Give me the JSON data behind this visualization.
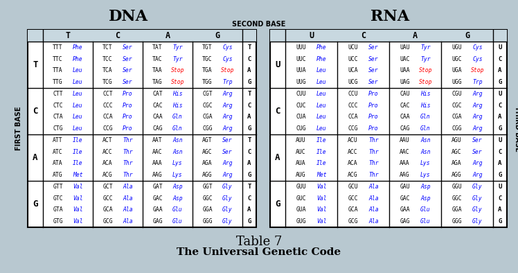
{
  "title1": "DNA",
  "title2": "RNA",
  "subtitle": "SECOND BASE",
  "footer1": "Table 7",
  "footer2": "The Universal Genetic Code",
  "bg_color": "#b8c8d0",
  "cell_bg": "#ffffff",
  "header_bg": "#c8d8e0",
  "border_color": "#000000",
  "dna_cols": [
    "T",
    "C",
    "A",
    "G"
  ],
  "rna_cols": [
    "U",
    "C",
    "A",
    "G"
  ],
  "row_labels_dna": [
    "T",
    "C",
    "A",
    "G"
  ],
  "row_labels_rna": [
    "U",
    "C",
    "A",
    "G"
  ],
  "third_base_dna": [
    "T",
    "C",
    "A",
    "G"
  ],
  "third_base_rna": [
    "U",
    "C",
    "A",
    "G"
  ],
  "dna_data": [
    [
      [
        [
          "TTT",
          "Phe",
          "blue"
        ],
        [
          "TTC",
          "Phe",
          "blue"
        ],
        [
          "TTA",
          "Leu",
          "blue"
        ],
        [
          "TTG",
          "Leu",
          "blue"
        ]
      ],
      [
        [
          "TCT",
          "Ser",
          "blue"
        ],
        [
          "TCC",
          "Ser",
          "blue"
        ],
        [
          "TCA",
          "Ser",
          "blue"
        ],
        [
          "TCG",
          "Ser",
          "blue"
        ]
      ],
      [
        [
          "TAT",
          "Tyr",
          "blue"
        ],
        [
          "TAC",
          "Tyr",
          "blue"
        ],
        [
          "TAA",
          "Stop",
          "red"
        ],
        [
          "TAG",
          "Stop",
          "red"
        ]
      ],
      [
        [
          "TGT",
          "Cys",
          "blue"
        ],
        [
          "TGC",
          "Cys",
          "blue"
        ],
        [
          "TGA",
          "Stop",
          "red"
        ],
        [
          "TGG",
          "Trp",
          "blue"
        ]
      ]
    ],
    [
      [
        [
          "CTT",
          "Leu",
          "blue"
        ],
        [
          "CTC",
          "Leu",
          "blue"
        ],
        [
          "CTA",
          "Leu",
          "blue"
        ],
        [
          "CTG",
          "Leu",
          "blue"
        ]
      ],
      [
        [
          "CCT",
          "Pro",
          "blue"
        ],
        [
          "CCC",
          "Pro",
          "blue"
        ],
        [
          "CCA",
          "Pro",
          "blue"
        ],
        [
          "CCG",
          "Pro",
          "blue"
        ]
      ],
      [
        [
          "CAT",
          "His",
          "blue"
        ],
        [
          "CAC",
          "His",
          "blue"
        ],
        [
          "CAA",
          "Gln",
          "blue"
        ],
        [
          "CAG",
          "Gln",
          "blue"
        ]
      ],
      [
        [
          "CGT",
          "Arg",
          "blue"
        ],
        [
          "CGC",
          "Arg",
          "blue"
        ],
        [
          "CGA",
          "Arg",
          "blue"
        ],
        [
          "CGG",
          "Arg",
          "blue"
        ]
      ]
    ],
    [
      [
        [
          "ATT",
          "Ile",
          "blue"
        ],
        [
          "ATC",
          "Ile",
          "blue"
        ],
        [
          "ATA",
          "Ile",
          "blue"
        ],
        [
          "ATG",
          "Met",
          "blue"
        ]
      ],
      [
        [
          "ACT",
          "Thr",
          "blue"
        ],
        [
          "ACC",
          "Thr",
          "blue"
        ],
        [
          "ACA",
          "Thr",
          "blue"
        ],
        [
          "ACG",
          "Thr",
          "blue"
        ]
      ],
      [
        [
          "AAT",
          "Asn",
          "blue"
        ],
        [
          "AAC",
          "Asn",
          "blue"
        ],
        [
          "AAA",
          "Lys",
          "blue"
        ],
        [
          "AAG",
          "Lys",
          "blue"
        ]
      ],
      [
        [
          "AGT",
          "Ser",
          "blue"
        ],
        [
          "AGC",
          "Ser",
          "blue"
        ],
        [
          "AGA",
          "Arg",
          "blue"
        ],
        [
          "AGG",
          "Arg",
          "blue"
        ]
      ]
    ],
    [
      [
        [
          "GTT",
          "Val",
          "blue"
        ],
        [
          "GTC",
          "Val",
          "blue"
        ],
        [
          "GTA",
          "Val",
          "blue"
        ],
        [
          "GTG",
          "Val",
          "blue"
        ]
      ],
      [
        [
          "GCT",
          "Ala",
          "blue"
        ],
        [
          "GCC",
          "Ala",
          "blue"
        ],
        [
          "GCA",
          "Ala",
          "blue"
        ],
        [
          "GCG",
          "Ala",
          "blue"
        ]
      ],
      [
        [
          "GAT",
          "Asp",
          "blue"
        ],
        [
          "GAC",
          "Asp",
          "blue"
        ],
        [
          "GAA",
          "Glu",
          "blue"
        ],
        [
          "GAG",
          "Glu",
          "blue"
        ]
      ],
      [
        [
          "GGT",
          "Gly",
          "blue"
        ],
        [
          "GGC",
          "Gly",
          "blue"
        ],
        [
          "GGA",
          "Gly",
          "blue"
        ],
        [
          "GGG",
          "Gly",
          "blue"
        ]
      ]
    ]
  ],
  "rna_data": [
    [
      [
        [
          "UUU",
          "Phe",
          "blue"
        ],
        [
          "UUC",
          "Phe",
          "blue"
        ],
        [
          "UUA",
          "Leu",
          "blue"
        ],
        [
          "UUG",
          "Leu",
          "blue"
        ]
      ],
      [
        [
          "UCU",
          "Ser",
          "blue"
        ],
        [
          "UCC",
          "Ser",
          "blue"
        ],
        [
          "UCA",
          "Ser",
          "blue"
        ],
        [
          "UCG",
          "Ser",
          "blue"
        ]
      ],
      [
        [
          "UAU",
          "Tyr",
          "blue"
        ],
        [
          "UAC",
          "Tyr",
          "blue"
        ],
        [
          "UAA",
          "Stop",
          "red"
        ],
        [
          "UAG",
          "Stop",
          "red"
        ]
      ],
      [
        [
          "UGU",
          "Cys",
          "blue"
        ],
        [
          "UGC",
          "Cys",
          "blue"
        ],
        [
          "UGA",
          "Stop",
          "red"
        ],
        [
          "UGG",
          "Trp",
          "blue"
        ]
      ]
    ],
    [
      [
        [
          "CUU",
          "Leu",
          "blue"
        ],
        [
          "CUC",
          "Leu",
          "blue"
        ],
        [
          "CUA",
          "Leu",
          "blue"
        ],
        [
          "CUG",
          "Leu",
          "blue"
        ]
      ],
      [
        [
          "CCU",
          "Pro",
          "blue"
        ],
        [
          "CCC",
          "Pro",
          "blue"
        ],
        [
          "CCA",
          "Pro",
          "blue"
        ],
        [
          "CCG",
          "Pro",
          "blue"
        ]
      ],
      [
        [
          "CAU",
          "His",
          "blue"
        ],
        [
          "CAC",
          "His",
          "blue"
        ],
        [
          "CAA",
          "Gln",
          "blue"
        ],
        [
          "CAG",
          "Gln",
          "blue"
        ]
      ],
      [
        [
          "CGU",
          "Arg",
          "blue"
        ],
        [
          "CGC",
          "Arg",
          "blue"
        ],
        [
          "CGA",
          "Arg",
          "blue"
        ],
        [
          "CGG",
          "Arg",
          "blue"
        ]
      ]
    ],
    [
      [
        [
          "AUU",
          "Ile",
          "blue"
        ],
        [
          "AUC",
          "Ile",
          "blue"
        ],
        [
          "AUA",
          "Ile",
          "blue"
        ],
        [
          "AUG",
          "Met",
          "blue"
        ]
      ],
      [
        [
          "ACU",
          "Thr",
          "blue"
        ],
        [
          "ACC",
          "Thr",
          "blue"
        ],
        [
          "ACA",
          "Thr",
          "blue"
        ],
        [
          "ACG",
          "Thr",
          "blue"
        ]
      ],
      [
        [
          "AAU",
          "Asn",
          "blue"
        ],
        [
          "AAC",
          "Asn",
          "blue"
        ],
        [
          "AAA",
          "Lys",
          "blue"
        ],
        [
          "AAG",
          "Lys",
          "blue"
        ]
      ],
      [
        [
          "AGU",
          "Ser",
          "blue"
        ],
        [
          "AGC",
          "Ser",
          "blue"
        ],
        [
          "AGA",
          "Arg",
          "blue"
        ],
        [
          "AGG",
          "Arg",
          "blue"
        ]
      ]
    ],
    [
      [
        [
          "GUU",
          "Val",
          "blue"
        ],
        [
          "GUC",
          "Val",
          "blue"
        ],
        [
          "GUA",
          "Val",
          "blue"
        ],
        [
          "GUG",
          "Val",
          "blue"
        ]
      ],
      [
        [
          "GCU",
          "Ala",
          "blue"
        ],
        [
          "GCC",
          "Ala",
          "blue"
        ],
        [
          "GCA",
          "Ala",
          "blue"
        ],
        [
          "GCG",
          "Ala",
          "blue"
        ]
      ],
      [
        [
          "GAU",
          "Asp",
          "blue"
        ],
        [
          "GAC",
          "Asp",
          "blue"
        ],
        [
          "GAA",
          "Glu",
          "blue"
        ],
        [
          "GAG",
          "Glu",
          "blue"
        ]
      ],
      [
        [
          "GGU",
          "Gly",
          "blue"
        ],
        [
          "GGC",
          "Gly",
          "blue"
        ],
        [
          "GGA",
          "Gly",
          "blue"
        ],
        [
          "GGG",
          "Gly",
          "blue"
        ]
      ]
    ]
  ]
}
